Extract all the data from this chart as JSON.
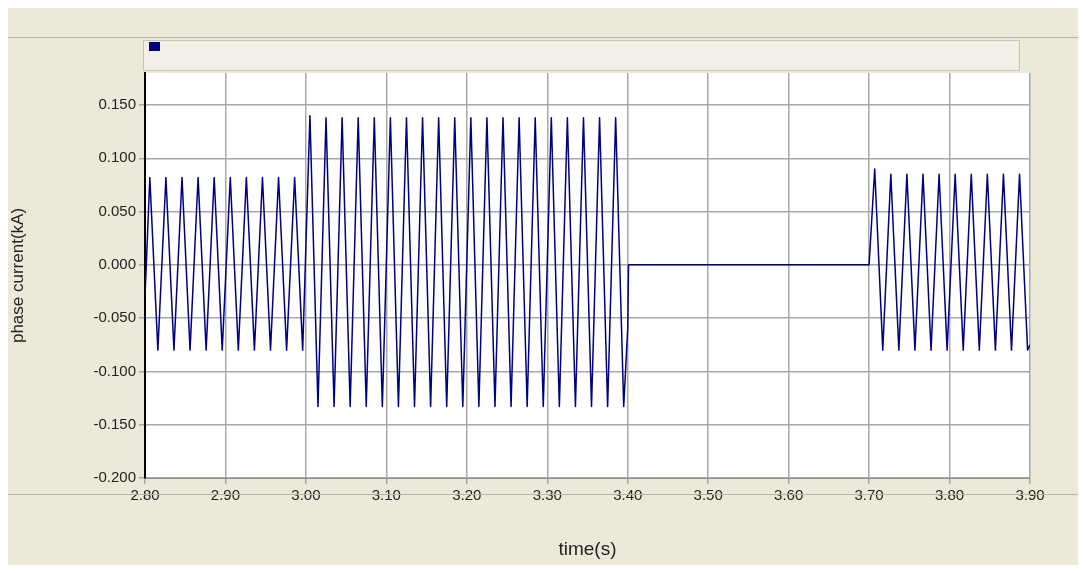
{
  "chart_data": {
    "type": "line",
    "xlabel": "time(s)",
    "ylabel": "phase current(kA)",
    "series": [
      {
        "color": "#000080",
        "x": [
          2.8,
          2.806,
          2.816,
          2.826,
          2.836,
          2.846,
          2.856,
          2.866,
          2.876,
          2.886,
          2.896,
          2.906,
          2.916,
          2.926,
          2.936,
          2.946,
          2.956,
          2.966,
          2.976,
          2.986,
          2.996,
          3.005,
          3.015,
          3.025,
          3.035,
          3.045,
          3.055,
          3.065,
          3.075,
          3.085,
          3.095,
          3.105,
          3.115,
          3.125,
          3.135,
          3.145,
          3.155,
          3.165,
          3.175,
          3.185,
          3.195,
          3.205,
          3.215,
          3.225,
          3.235,
          3.245,
          3.255,
          3.265,
          3.275,
          3.285,
          3.295,
          3.305,
          3.315,
          3.325,
          3.335,
          3.345,
          3.355,
          3.365,
          3.375,
          3.385,
          3.395,
          3.4,
          3.401,
          3.7,
          3.707,
          3.717,
          3.727,
          3.737,
          3.747,
          3.757,
          3.767,
          3.777,
          3.787,
          3.797,
          3.807,
          3.817,
          3.827,
          3.837,
          3.847,
          3.857,
          3.867,
          3.877,
          3.887,
          3.897,
          3.9
        ],
        "values": [
          -0.03,
          0.082,
          -0.08,
          0.082,
          -0.08,
          0.082,
          -0.08,
          0.082,
          -0.08,
          0.082,
          -0.08,
          0.082,
          -0.08,
          0.082,
          -0.08,
          0.082,
          -0.08,
          0.082,
          -0.08,
          0.082,
          -0.08,
          0.14,
          -0.133,
          0.138,
          -0.133,
          0.138,
          -0.133,
          0.138,
          -0.133,
          0.138,
          -0.133,
          0.138,
          -0.133,
          0.138,
          -0.133,
          0.138,
          -0.133,
          0.138,
          -0.133,
          0.138,
          -0.133,
          0.138,
          -0.133,
          0.138,
          -0.133,
          0.138,
          -0.133,
          0.138,
          -0.133,
          0.138,
          -0.133,
          0.138,
          -0.133,
          0.138,
          -0.133,
          0.138,
          -0.133,
          0.138,
          -0.133,
          0.138,
          -0.133,
          -0.06,
          0,
          0,
          0.09,
          -0.08,
          0.085,
          -0.08,
          0.085,
          -0.08,
          0.085,
          -0.08,
          0.085,
          -0.08,
          0.085,
          -0.08,
          0.085,
          -0.08,
          0.085,
          -0.08,
          0.085,
          -0.08,
          0.085,
          -0.08,
          -0.075
        ]
      }
    ],
    "xlim": [
      2.8,
      3.9
    ],
    "xticks": [
      {
        "value": 2.8,
        "label": "2.80"
      },
      {
        "value": 2.9,
        "label": "2.90"
      },
      {
        "value": 3.0,
        "label": "3.00"
      },
      {
        "value": 3.1,
        "label": "3.10"
      },
      {
        "value": 3.2,
        "label": "3.20"
      },
      {
        "value": 3.3,
        "label": "3.30"
      },
      {
        "value": 3.4,
        "label": "3.40"
      },
      {
        "value": 3.5,
        "label": "3.50"
      },
      {
        "value": 3.6,
        "label": "3.60"
      },
      {
        "value": 3.7,
        "label": "3.70"
      },
      {
        "value": 3.8,
        "label": "3.80"
      },
      {
        "value": 3.9,
        "label": "3.90"
      }
    ],
    "ylim": [
      -0.2,
      0.18
    ],
    "yticks": [
      {
        "value": -0.2,
        "label": "-0.200"
      },
      {
        "value": -0.15,
        "label": "-0.150"
      },
      {
        "value": -0.1,
        "label": "-0.100"
      },
      {
        "value": -0.05,
        "label": "-0.050"
      },
      {
        "value": 0,
        "label": "0.000"
      },
      {
        "value": 0.05,
        "label": "0.050"
      },
      {
        "value": 0.1,
        "label": "0.100"
      },
      {
        "value": 0.15,
        "label": "0.150"
      }
    ],
    "grid": true,
    "marker": "none",
    "line_style": "solid"
  }
}
